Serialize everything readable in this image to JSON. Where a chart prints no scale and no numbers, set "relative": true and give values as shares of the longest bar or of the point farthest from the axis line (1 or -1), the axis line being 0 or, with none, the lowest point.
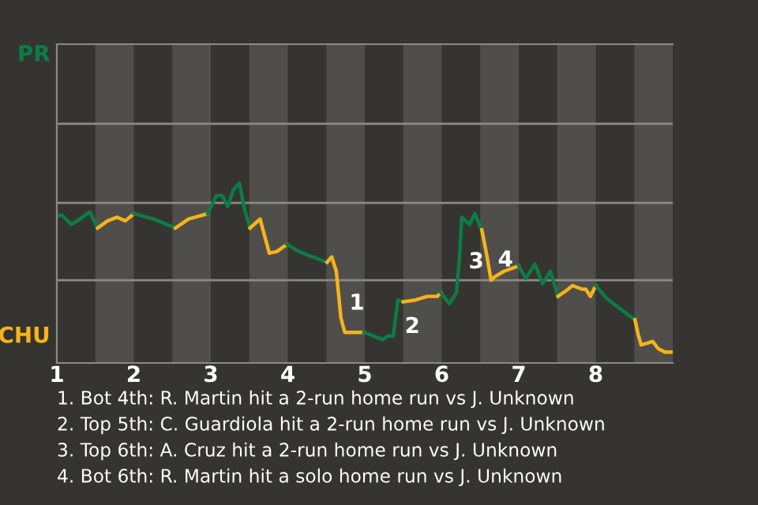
{
  "chart_data": {
    "type": "line",
    "relative": true,
    "marker": "none",
    "line_style": "solid",
    "ref_lines": [
      {
        "axis": "y",
        "value": 0.46,
        "color": "#8c8a87"
      },
      {
        "axis": "y",
        "value": 0.89,
        "color": "#8c8a87"
      },
      {
        "axis": "y",
        "value": 1.33,
        "color": "#8c8a87"
      }
    ],
    "xlim": [
      1,
      9
    ],
    "xticks": [
      {
        "value": 1,
        "label": "1"
      },
      {
        "value": 2,
        "label": "2"
      },
      {
        "value": 3,
        "label": "3"
      },
      {
        "value": 4,
        "label": "4"
      },
      {
        "value": 5,
        "label": "5"
      },
      {
        "value": 6,
        "label": "6"
      },
      {
        "value": 7,
        "label": "7"
      },
      {
        "value": 8,
        "label": "8"
      }
    ],
    "series": [
      {
        "name": "PR",
        "color": "#0b7d46",
        "x": [
          1.0,
          1.07,
          1.19,
          1.3,
          1.43,
          1.53
        ],
        "values": [
          0.82,
          0.82,
          0.77,
          0.8,
          0.84,
          0.75
        ]
      },
      {
        "name": "CHU",
        "color": "#f6b41a",
        "x": [
          1.53,
          1.66,
          1.78,
          1.89,
          2.0
        ],
        "values": [
          0.75,
          0.79,
          0.81,
          0.79,
          0.83
        ]
      },
      {
        "color": "#0b7d46",
        "x": [
          2.0,
          2.26,
          2.54
        ],
        "values": [
          0.83,
          0.8,
          0.75
        ]
      },
      {
        "color": "#f6b41a",
        "x": [
          2.54,
          2.71,
          2.96
        ],
        "values": [
          0.75,
          0.8,
          0.83
        ]
      },
      {
        "color": "#0b7d46",
        "x": [
          2.96,
          3.07,
          3.15,
          3.22,
          3.29,
          3.37,
          3.44,
          3.51
        ],
        "values": [
          0.83,
          0.93,
          0.93,
          0.87,
          0.96,
          1.0,
          0.85,
          0.75
        ]
      },
      {
        "color": "#f6b41a",
        "x": [
          3.51,
          3.64,
          3.76,
          3.86,
          3.99
        ],
        "values": [
          0.75,
          0.8,
          0.61,
          0.62,
          0.66
        ]
      },
      {
        "color": "#0b7d46",
        "x": [
          3.99,
          4.14,
          4.32,
          4.51
        ],
        "values": [
          0.66,
          0.62,
          0.59,
          0.56
        ]
      },
      {
        "color": "#f6b41a",
        "x": [
          4.51,
          4.57,
          4.63,
          4.66,
          4.69,
          4.74,
          4.83,
          4.89,
          4.99
        ],
        "values": [
          0.56,
          0.59,
          0.51,
          0.38,
          0.25,
          0.17,
          0.17,
          0.17,
          0.17
        ]
      },
      {
        "color": "#0b7d46",
        "x": [
          4.99,
          5.11,
          5.24,
          5.3,
          5.37,
          5.43,
          5.5
        ],
        "values": [
          0.17,
          0.15,
          0.13,
          0.15,
          0.15,
          0.35,
          0.34
        ]
      },
      {
        "color": "#f6b41a",
        "x": [
          5.5,
          5.66,
          5.81,
          5.94,
          5.99
        ],
        "values": [
          0.34,
          0.35,
          0.37,
          0.37,
          0.39
        ]
      },
      {
        "color": "#0b7d46",
        "x": [
          5.99,
          6.1,
          6.19,
          6.23,
          6.26,
          6.36,
          6.43,
          6.52
        ],
        "values": [
          0.39,
          0.33,
          0.39,
          0.58,
          0.81,
          0.77,
          0.83,
          0.74
        ]
      },
      {
        "color": "#f6b41a",
        "x": [
          6.52,
          6.58,
          6.64,
          6.69,
          6.81,
          7.0
        ],
        "values": [
          0.74,
          0.61,
          0.46,
          0.48,
          0.51,
          0.54
        ]
      },
      {
        "color": "#0b7d46",
        "x": [
          7.0,
          7.09,
          7.21,
          7.31,
          7.41,
          7.51
        ],
        "values": [
          0.54,
          0.47,
          0.55,
          0.44,
          0.51,
          0.37
        ]
      },
      {
        "color": "#f6b41a",
        "x": [
          7.51,
          7.61,
          7.7,
          7.82,
          7.87,
          7.93,
          8.0
        ],
        "values": [
          0.37,
          0.4,
          0.43,
          0.41,
          0.41,
          0.37,
          0.43
        ]
      },
      {
        "color": "#0b7d46",
        "x": [
          8.0,
          8.14,
          8.32,
          8.51
        ],
        "values": [
          0.43,
          0.36,
          0.3,
          0.24
        ]
      },
      {
        "color": "#f6b41a",
        "x": [
          8.51,
          8.55,
          8.59,
          8.67,
          8.74,
          8.81,
          8.9,
          9.0
        ],
        "values": [
          0.24,
          0.16,
          0.1,
          0.11,
          0.12,
          0.08,
          0.06,
          0.06
        ]
      }
    ],
    "bands": [
      {
        "axis": "x",
        "from": 1.5,
        "to": 2,
        "color": "#504e4b"
      },
      {
        "axis": "x",
        "from": 2.5,
        "to": 3,
        "color": "#504e4b"
      },
      {
        "axis": "x",
        "from": 3.5,
        "to": 4,
        "color": "#504e4b"
      },
      {
        "axis": "x",
        "from": 4.5,
        "to": 5,
        "color": "#504e4b"
      },
      {
        "axis": "x",
        "from": 5.5,
        "to": 6,
        "color": "#504e4b"
      },
      {
        "axis": "x",
        "from": 6.5,
        "to": 7,
        "color": "#504e4b"
      },
      {
        "axis": "x",
        "from": 7.5,
        "to": 8,
        "color": "#504e4b"
      },
      {
        "axis": "x",
        "from": 8.5,
        "to": 9,
        "color": "#504e4b"
      }
    ],
    "annotations": [
      {
        "text": "1",
        "x": 4.67,
        "y": 0.33
      },
      {
        "text": "2",
        "x": 5.39,
        "y": 0.2
      },
      {
        "text": "3",
        "x": 6.22,
        "y": 0.56
      },
      {
        "text": "4",
        "x": 6.6,
        "y": 0.57
      },
      "1. Bot 4th: R. Martin hit a 2-run home run vs J. Unknown",
      "2. Top 5th: C. Guardiola hit a 2-run home run vs J. Unknown",
      "3. Top 6th: A. Cruz hit a 2-run home run vs J. Unknown",
      "4. Bot 6th: R. Martin hit a solo home run vs J. Unknown"
    ]
  }
}
